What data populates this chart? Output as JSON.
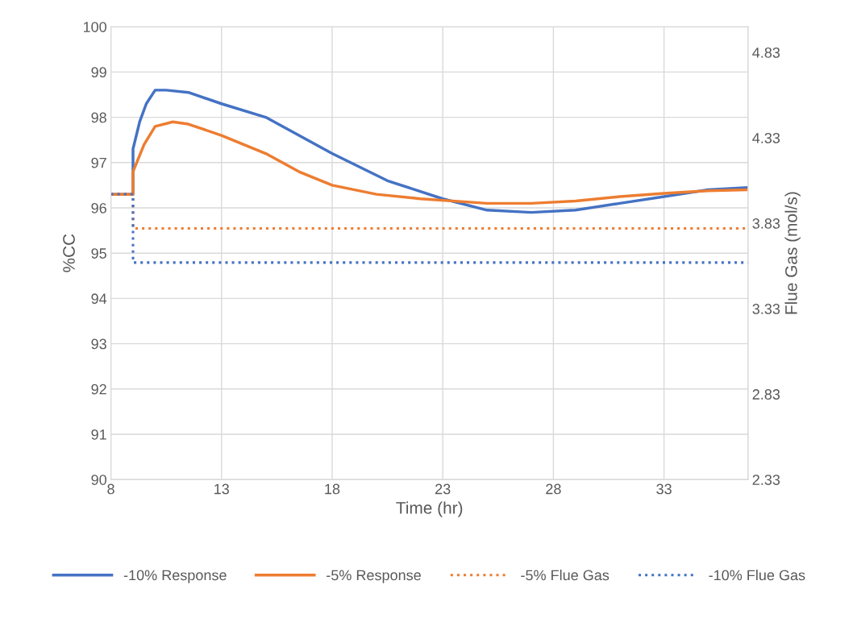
{
  "chart_data": {
    "type": "line",
    "xlabel": "Time (hr)",
    "ylabel": "%CC",
    "y2label": "Flue Gas (mol/s)",
    "xlim": [
      8,
      36.8
    ],
    "xticks": [
      8,
      13,
      18,
      23,
      28,
      33
    ],
    "ylim": [
      90,
      100
    ],
    "yticks": [
      90,
      91,
      92,
      93,
      94,
      95,
      96,
      97,
      98,
      99,
      100
    ],
    "y2lim": [
      2.33,
      4.98
    ],
    "y2ticks": [
      2.33,
      2.83,
      3.33,
      3.83,
      4.33,
      4.83
    ],
    "grid": true,
    "legend": "bottom",
    "marker": "none",
    "series": [
      {
        "name": "-10% Response",
        "color": "#4472c4",
        "line_style": "solid",
        "x": [
          8,
          9,
          9,
          9.3,
          9.6,
          10,
          10.5,
          11.5,
          13,
          15,
          18,
          20.5,
          23,
          25,
          27,
          29,
          31,
          33,
          35,
          36.8
        ],
        "values": [
          96.3,
          96.3,
          97.3,
          97.9,
          98.3,
          98.6,
          98.6,
          98.55,
          98.3,
          98.0,
          97.2,
          96.6,
          96.2,
          95.95,
          95.9,
          95.95,
          96.1,
          96.25,
          96.4,
          96.45
        ]
      },
      {
        "name": "-5% Response",
        "color": "#ed7d31",
        "line_style": "solid",
        "x": [
          8,
          9,
          9,
          9.5,
          10,
          10.8,
          11.5,
          13,
          15,
          16.5,
          18,
          20,
          22,
          25,
          27,
          29,
          31,
          33,
          35,
          36.8
        ],
        "values": [
          96.3,
          96.3,
          96.8,
          97.4,
          97.8,
          97.9,
          97.85,
          97.6,
          97.2,
          96.8,
          96.5,
          96.3,
          96.2,
          96.1,
          96.1,
          96.15,
          96.25,
          96.32,
          96.38,
          96.4
        ]
      },
      {
        "name": "-5% Flue Gas",
        "color": "#ed7d31",
        "line_style": "dotted",
        "axis": "y2",
        "x": [
          8,
          9,
          9,
          36.8
        ],
        "values": [
          4.0,
          4.0,
          3.8,
          3.8
        ]
      },
      {
        "name": "-10% Flue Gas",
        "color": "#4472c4",
        "line_style": "dotted",
        "axis": "y2",
        "x": [
          8,
          9,
          9,
          36.8
        ],
        "values": [
          4.0,
          4.0,
          3.6,
          3.6
        ]
      }
    ]
  }
}
